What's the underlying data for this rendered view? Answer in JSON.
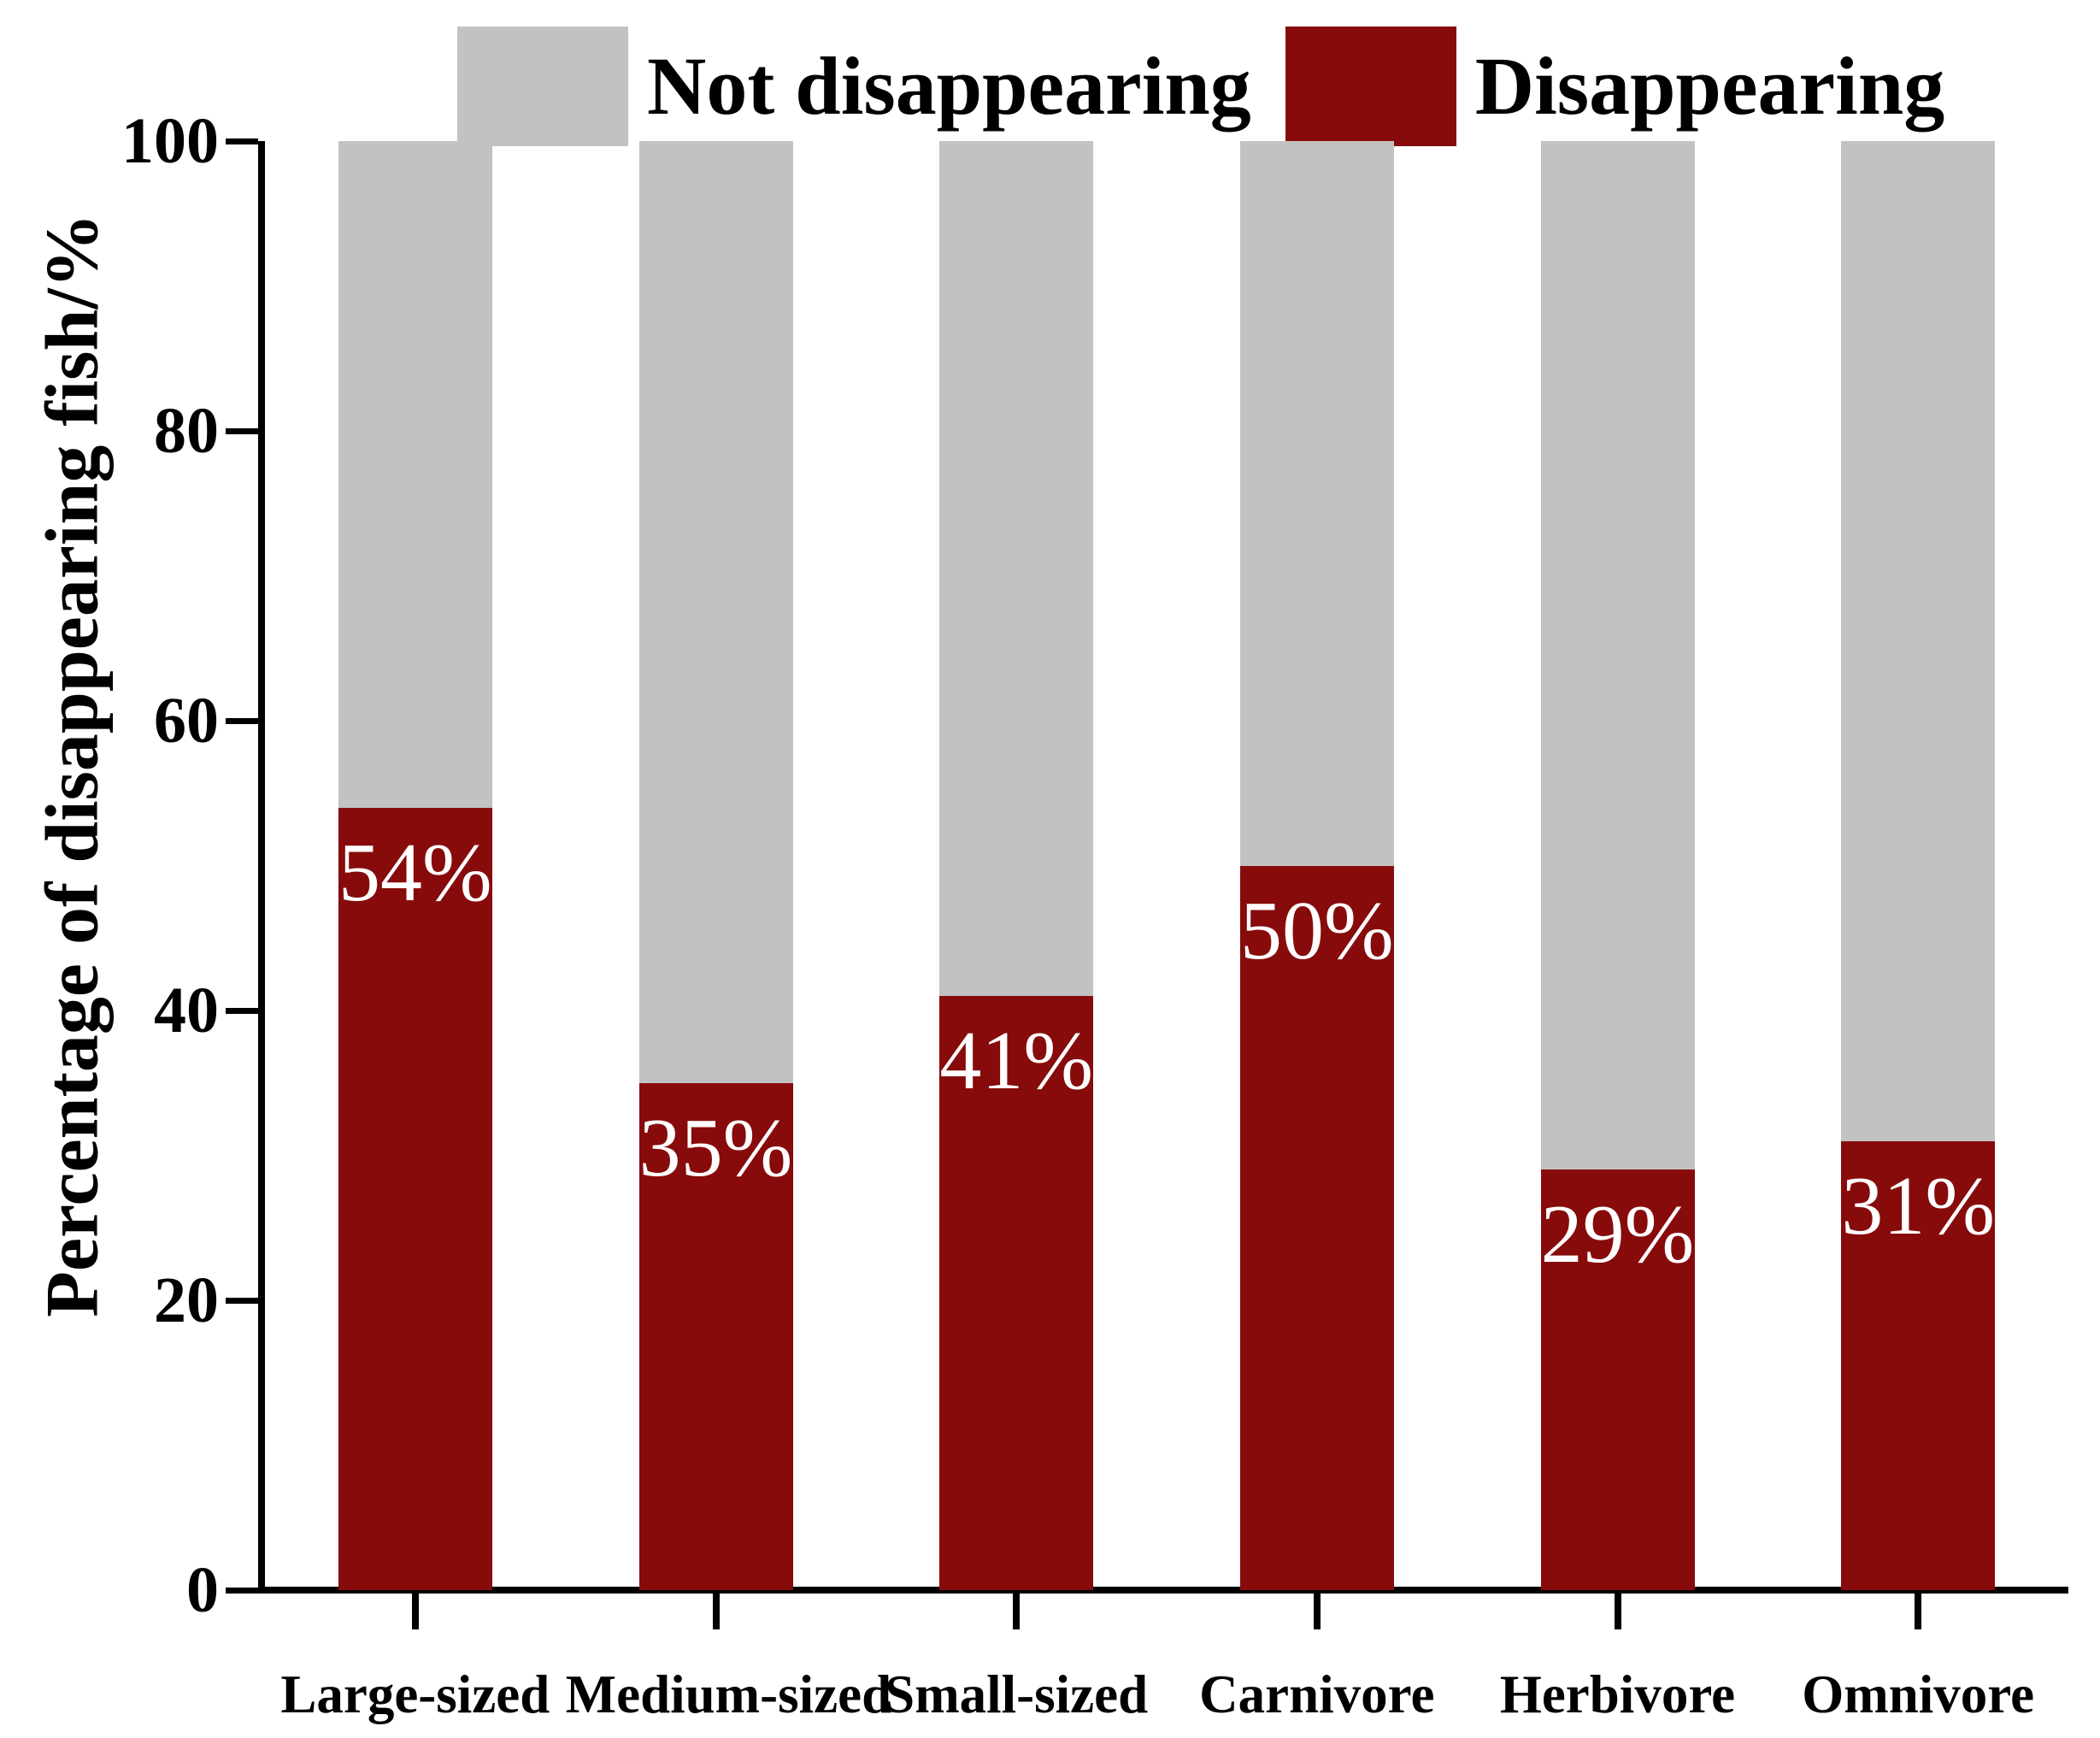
{
  "chart_data": {
    "type": "bar",
    "stacked": true,
    "categories": [
      "Large-sized",
      "Medium-sized",
      "Small-sized",
      "Carnivore",
      "Herbivore",
      "Omnivore"
    ],
    "series": [
      {
        "name": "Disappearing",
        "color": "#870B0B",
        "values": [
          54,
          35,
          41,
          50,
          29,
          31
        ]
      },
      {
        "name": "Not disappearing",
        "color": "#C2C2C2",
        "values": [
          46,
          65,
          59,
          50,
          71,
          69
        ]
      }
    ],
    "bar_labels": [
      "54%",
      "35%",
      "41%",
      "50%",
      "29%",
      "31%"
    ],
    "bar_label_color": "#FFFFFF",
    "title": "",
    "xlabel": "",
    "ylabel": "Percentage of disappearing fish/%",
    "ylim": [
      0,
      100
    ],
    "yticks": [
      "0",
      "20",
      "40",
      "60",
      "80",
      "100"
    ],
    "grid": false,
    "legend": {
      "position": "top",
      "entries": [
        {
          "label": "Not disappearing",
          "color": "#C2C2C2"
        },
        {
          "label": "Disappearing",
          "color": "#870B0B"
        }
      ]
    },
    "axis_color": "#000000",
    "background": "#FFFFFF"
  }
}
